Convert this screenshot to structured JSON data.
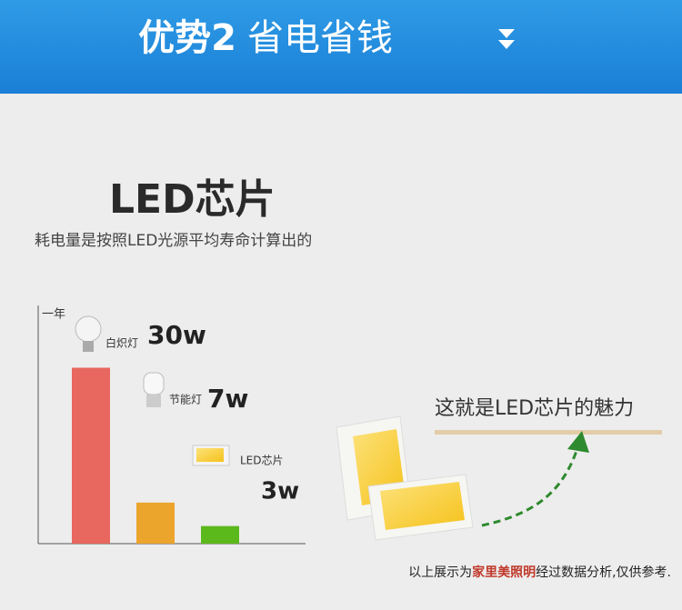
{
  "header": {
    "title_bold": "优势2",
    "title": "省电省钱"
  },
  "section": {
    "title": "LED芯片",
    "subtitle": "耗电量是按照LED光源平均寿命计算出的"
  },
  "chart_data": {
    "type": "bar",
    "y_label": "一年",
    "categories": [
      "白炽灯",
      "节能灯",
      "LED芯片"
    ],
    "values": [
      30,
      7,
      3
    ],
    "value_labels": [
      "30w",
      "7w",
      "3w"
    ],
    "colors": [
      "#e8675e",
      "#eba42c",
      "#5cb91c"
    ],
    "ylim": [
      0,
      40
    ]
  },
  "callout": "这就是LED芯片的魅力",
  "footnote": {
    "before": "以上展示为",
    "brand": "家里美照明",
    "after": "经过数据分析,仅供参考."
  }
}
